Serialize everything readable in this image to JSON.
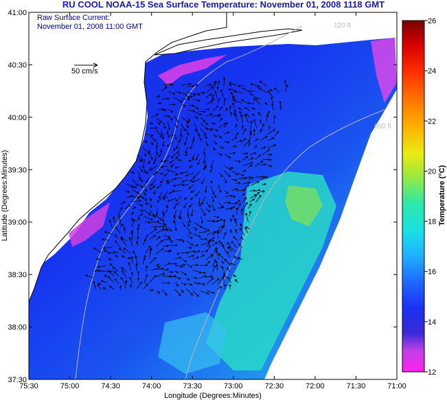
{
  "title": "RU COOL  NOAA-15  Sea Surface Temperature:  November 01, 2008 1118 GMT",
  "overlay": {
    "line1": "Raw Surface Current:",
    "line2": "November 01, 2008 11:00 GMT"
  },
  "scale_arrow_label": "50 cm/s",
  "axes": {
    "xlabel": "Longitude (Degrees:Minutes)",
    "ylabel": "Latitude (Degrees:Minutes)",
    "xticks": [
      "75:30",
      "75:00",
      "74:30",
      "74:00",
      "73:30",
      "73:00",
      "72:30",
      "72:00",
      "71:30",
      "71:00"
    ],
    "yticks": [
      "41:00",
      "40:30",
      "40:00",
      "39:30",
      "39:00",
      "38:30",
      "38:00",
      "37:30"
    ]
  },
  "contours": {
    "c120": "120 ft",
    "c600": "600 ft"
  },
  "colorbar": {
    "title": "Temperature (°C)",
    "ticks": [
      "26",
      "24",
      "22",
      "20",
      "18",
      "16",
      "14",
      "12"
    ]
  },
  "colors": {
    "title": "#1a1aa6",
    "overlay": "#0000a0",
    "land": "#ffffff",
    "contour": "#b8b8b8",
    "vector": "#000000"
  }
}
